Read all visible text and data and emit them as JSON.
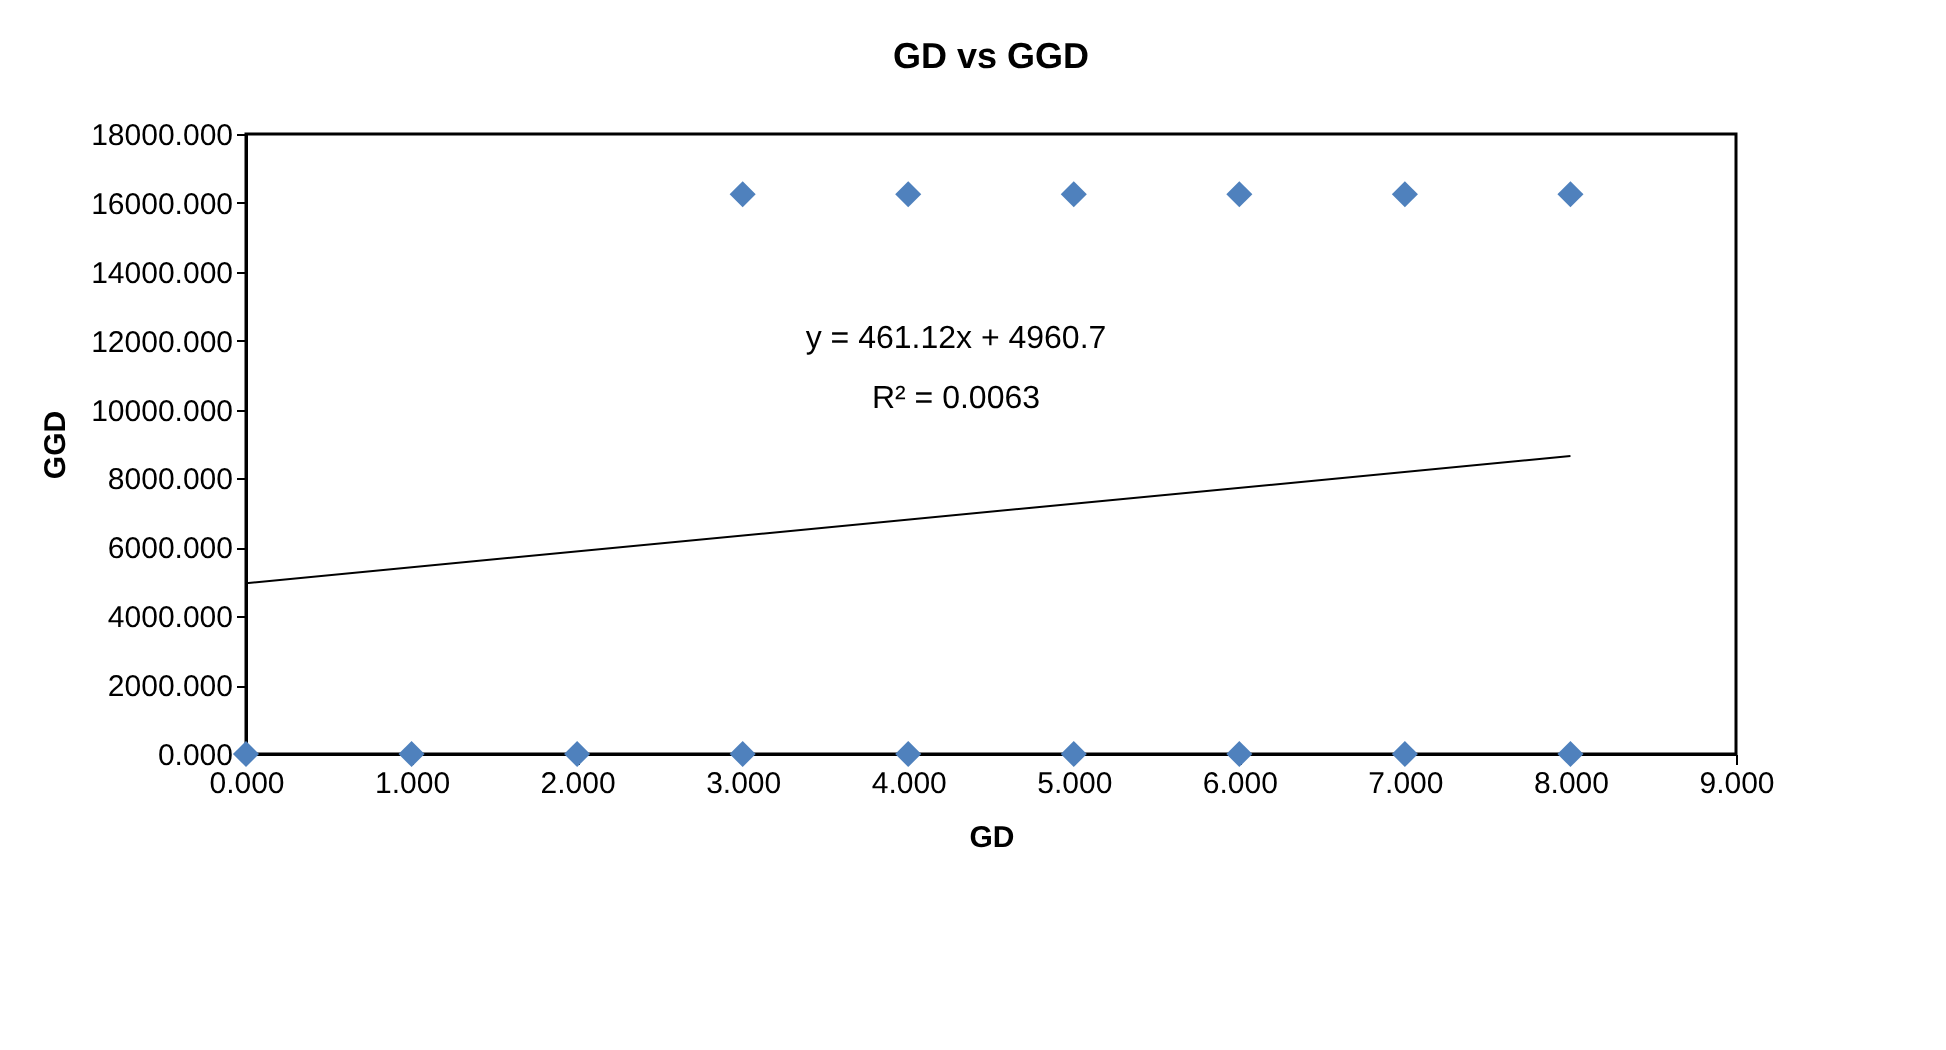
{
  "chart_data": {
    "type": "scatter",
    "title": "GD vs GGD",
    "xlabel": "GD",
    "ylabel": "GGD",
    "series": [
      {
        "color": "#4f81bd",
        "marker": "diamond",
        "x": [
          0,
          1,
          2,
          3,
          4,
          5,
          6,
          7,
          8,
          3,
          4,
          5,
          6,
          7,
          8
        ],
        "values": [
          0,
          0,
          0,
          0,
          0,
          0,
          0,
          0,
          0,
          16250,
          16250,
          16250,
          16250,
          16250,
          16250
        ]
      },
      {
        "type": "line",
        "color": "#000000",
        "marker": "none",
        "line_style": "solid",
        "x": [
          0,
          8
        ],
        "values": [
          4960,
          8650
        ]
      }
    ],
    "xlim": [
      0,
      9
    ],
    "ylim": [
      0,
      18000
    ],
    "xticks": [
      {
        "value": 0,
        "label": "0.000"
      },
      {
        "value": 1,
        "label": "1.000"
      },
      {
        "value": 2,
        "label": "2.000"
      },
      {
        "value": 3,
        "label": "3.000"
      },
      {
        "value": 4,
        "label": "4.000"
      },
      {
        "value": 5,
        "label": "5.000"
      },
      {
        "value": 6,
        "label": "6.000"
      },
      {
        "value": 7,
        "label": "7.000"
      },
      {
        "value": 8,
        "label": "8.000"
      },
      {
        "value": 9,
        "label": "9.000"
      }
    ],
    "yticks": [
      {
        "value": 0,
        "label": "0.000"
      },
      {
        "value": 2000,
        "label": "2000.000"
      },
      {
        "value": 4000,
        "label": "4000.000"
      },
      {
        "value": 6000,
        "label": "6000.000"
      },
      {
        "value": 8000,
        "label": "8000.000"
      },
      {
        "value": 10000,
        "label": "10000.000"
      },
      {
        "value": 12000,
        "label": "12000.000"
      },
      {
        "value": 14000,
        "label": "14000.000"
      },
      {
        "value": 16000,
        "label": "16000.000"
      },
      {
        "value": 18000,
        "label": "18000.000"
      }
    ],
    "grid": false,
    "annotations": [
      "y = 461.12x + 4960.7",
      "R² = 0.0063"
    ]
  }
}
